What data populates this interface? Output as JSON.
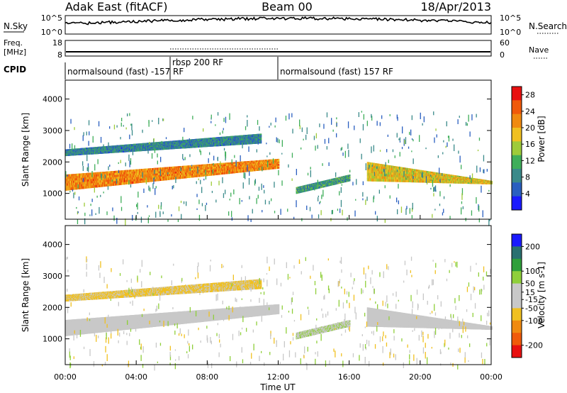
{
  "header": {
    "left": "Adak East (fitACF)",
    "center": "Beam 00",
    "right": "18/Apr/2013"
  },
  "sky_panel": {
    "left_label": "N.Sky",
    "right_label": "N.Search",
    "left_ticks": [
      "10^5",
      "10^0"
    ],
    "right_ticks": [
      "10^5",
      "10^0"
    ]
  },
  "freq_panel": {
    "left_label_1": "Freq.",
    "left_label_2": "[MHz]",
    "right_label": "Nave",
    "left_ticks": [
      "18",
      "8"
    ],
    "right_ticks": [
      "60",
      "0"
    ]
  },
  "cpid_panel": {
    "label": "CPID",
    "segments": [
      {
        "text": "normalsound (fast) -157 RF",
        "start": "00:00"
      },
      {
        "text": "rbsp 200 RF",
        "start": "06:00"
      },
      {
        "text": "normalsound (fast) 157 RF",
        "start": "12:00"
      }
    ]
  },
  "colors": {
    "power_scale": [
      "#1a1aff",
      "#2a5fc0",
      "#3a8a8a",
      "#3fae5a",
      "#9ecb3a",
      "#f0c020",
      "#f08a10",
      "#f05a0a",
      "#e81010"
    ],
    "velocity_scale": [
      "#e81010",
      "#f05a0a",
      "#f08a10",
      "#f0c020",
      "#c8c8c8",
      "#c8c8c8",
      "#8fcf3a",
      "#2f9f3a",
      "#2a7070",
      "#1a1aff"
    ]
  },
  "chart_data": [
    {
      "type": "heatmap",
      "name": "Power",
      "xlabel": "",
      "ylabel": "Slant Range [km]",
      "xlim": [
        "00:00",
        "24:00"
      ],
      "ylim": [
        180,
        4600
      ],
      "ytick_labels": [
        "1000",
        "2000",
        "3000",
        "4000"
      ],
      "ytick_values": [
        1000,
        2000,
        3000,
        4000
      ],
      "colorbar": {
        "label": "Power [dB]",
        "tick_labels": [
          "4",
          "8",
          "12",
          "16",
          "20",
          "24",
          "28"
        ],
        "tick_values": [
          4,
          8,
          12,
          16,
          20,
          24,
          28
        ],
        "range": [
          0,
          30
        ]
      },
      "bands": [
        {
          "time": [
            "00:00",
            "12:00"
          ],
          "range_start": [
            1100,
            1800
          ],
          "range_end": [
            1600,
            2100
          ],
          "power": 22
        },
        {
          "time": [
            "00:00",
            "11:00"
          ],
          "range_start": [
            2200,
            2600
          ],
          "range_end": [
            2400,
            2900
          ],
          "power": 8
        },
        {
          "time": [
            "13:00",
            "16:00"
          ],
          "range_start": [
            1200,
            1600
          ],
          "range_end": [
            1000,
            1400
          ],
          "power": 10
        },
        {
          "time": [
            "17:00",
            "24:00"
          ],
          "range_start": [
            2000,
            1400
          ],
          "range_end": [
            1400,
            1300
          ],
          "power": 18
        }
      ]
    },
    {
      "type": "heatmap",
      "name": "Velocity",
      "xlabel": "Time UT",
      "ylabel": "Slant Range [km]",
      "xlim": [
        "00:00",
        "24:00"
      ],
      "ylim": [
        180,
        4600
      ],
      "xtick_labels": [
        "00:00",
        "04:00",
        "08:00",
        "12:00",
        "16:00",
        "20:00",
        "00:00"
      ],
      "ytick_labels": [
        "1000",
        "2000",
        "3000",
        "4000"
      ],
      "ytick_values": [
        1000,
        2000,
        3000,
        4000
      ],
      "colorbar": {
        "label": "Velocity [m s-1]",
        "tick_labels": [
          "200",
          "100",
          "50",
          "15",
          "-15",
          "-50",
          "-100",
          "-200"
        ],
        "tick_values": [
          200,
          100,
          50,
          15,
          -15,
          -50,
          -100,
          -200
        ],
        "range": [
          -250,
          250
        ]
      },
      "bands": [
        {
          "time": [
            "00:00",
            "12:00"
          ],
          "range_start": [
            1100,
            1800
          ],
          "range_end": [
            1600,
            2100
          ],
          "velocity": 0
        },
        {
          "time": [
            "00:00",
            "11:00"
          ],
          "range_start": [
            2200,
            2600
          ],
          "range_end": [
            2400,
            2900
          ],
          "velocity": -60
        },
        {
          "time": [
            "13:00",
            "16:00"
          ],
          "range_start": [
            1200,
            1600
          ],
          "range_end": [
            1000,
            1400
          ],
          "velocity": 40
        },
        {
          "time": [
            "17:00",
            "24:00"
          ],
          "range_start": [
            2000,
            1400
          ],
          "range_end": [
            1400,
            1300
          ],
          "velocity": 20
        }
      ]
    }
  ]
}
